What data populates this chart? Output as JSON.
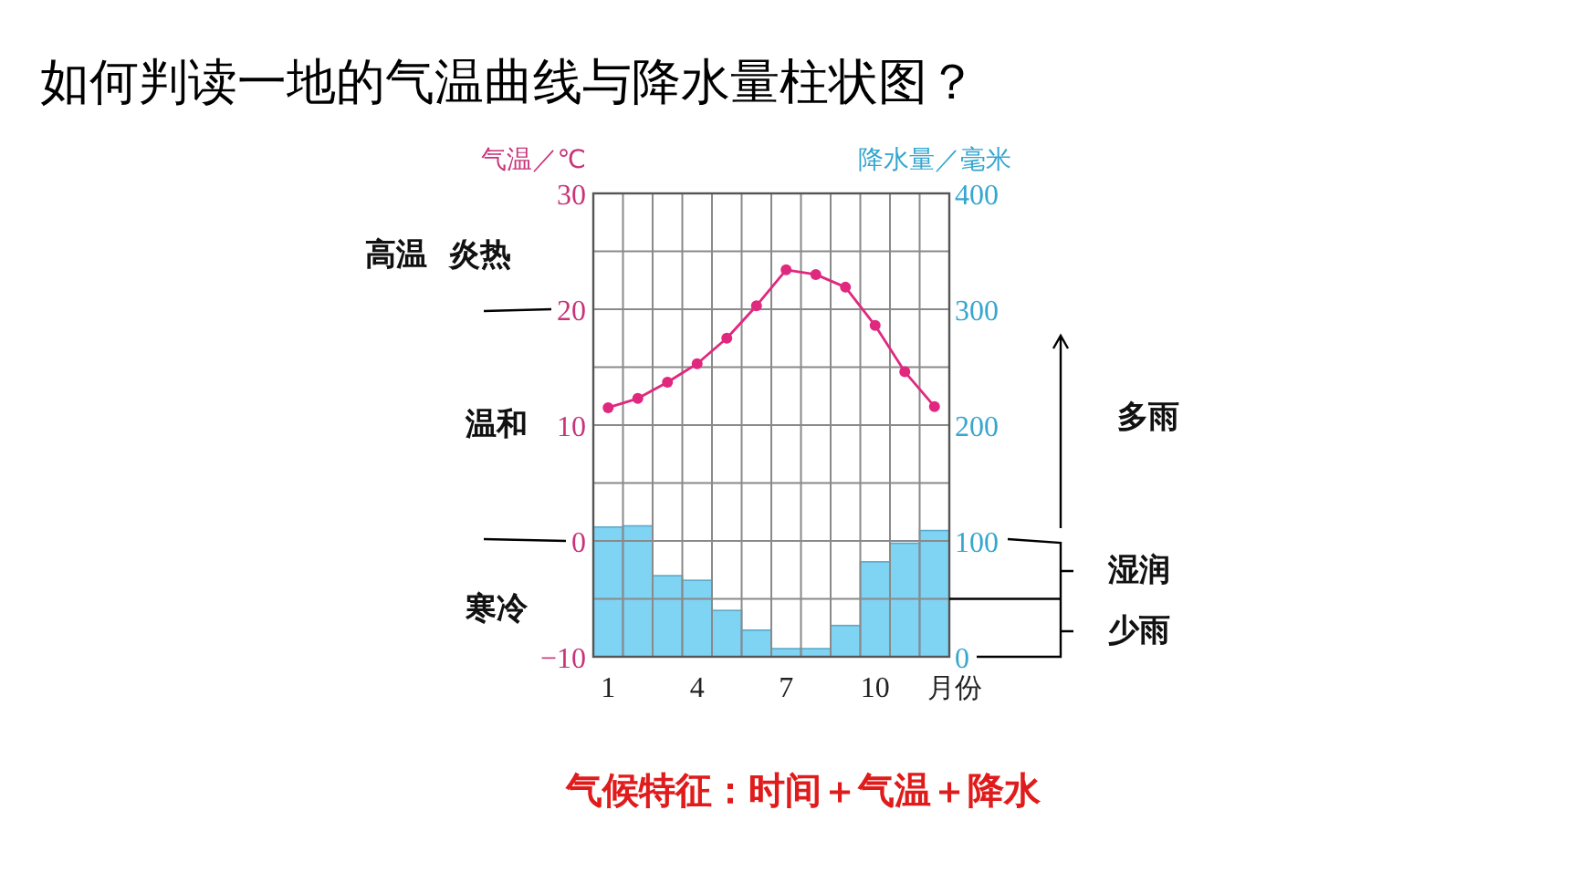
{
  "chart_data": {
    "type": "bar",
    "title": "如何判读一地的气温曲线与降水量柱状图？",
    "ylabel": "气温／℃",
    "y2label": "降水量／毫米",
    "xlabel": "月份",
    "categories": [
      "1",
      null,
      null,
      "4",
      null,
      null,
      "7",
      null,
      null,
      "10",
      null,
      null
    ],
    "series": [
      {
        "name": null,
        "axis": "y2",
        "color": "#7fd3f3",
        "values": [
          112,
          113,
          70,
          66,
          40,
          23,
          7,
          7,
          27,
          82,
          98,
          109
        ]
      },
      {
        "name": null,
        "type": "line",
        "axis": "y",
        "color": "#e0287e",
        "values": [
          11.5,
          12.3,
          13.7,
          15.3,
          17.5,
          20.3,
          23.4,
          23.0,
          21.9,
          18.6,
          14.6,
          11.6
        ]
      }
    ],
    "ylim": [
      -10,
      30
    ],
    "yticks": [
      {
        "value": -10,
        "label": "−10"
      },
      {
        "value": -5,
        "label": null
      },
      0,
      {
        "value": 5,
        "label": null
      },
      10,
      {
        "value": 15,
        "label": null
      },
      20,
      {
        "value": 25,
        "label": null
      },
      30
    ],
    "y2lim": [
      0,
      400
    ],
    "y2ticks": [
      0,
      100,
      200,
      300,
      400
    ],
    "grid": true,
    "marker": "circle",
    "annotations": [
      "高温  炎热",
      "温和",
      "寒冷",
      "多雨",
      "湿润",
      "少雨",
      "气候特征：时间＋气温＋降水"
    ]
  }
}
